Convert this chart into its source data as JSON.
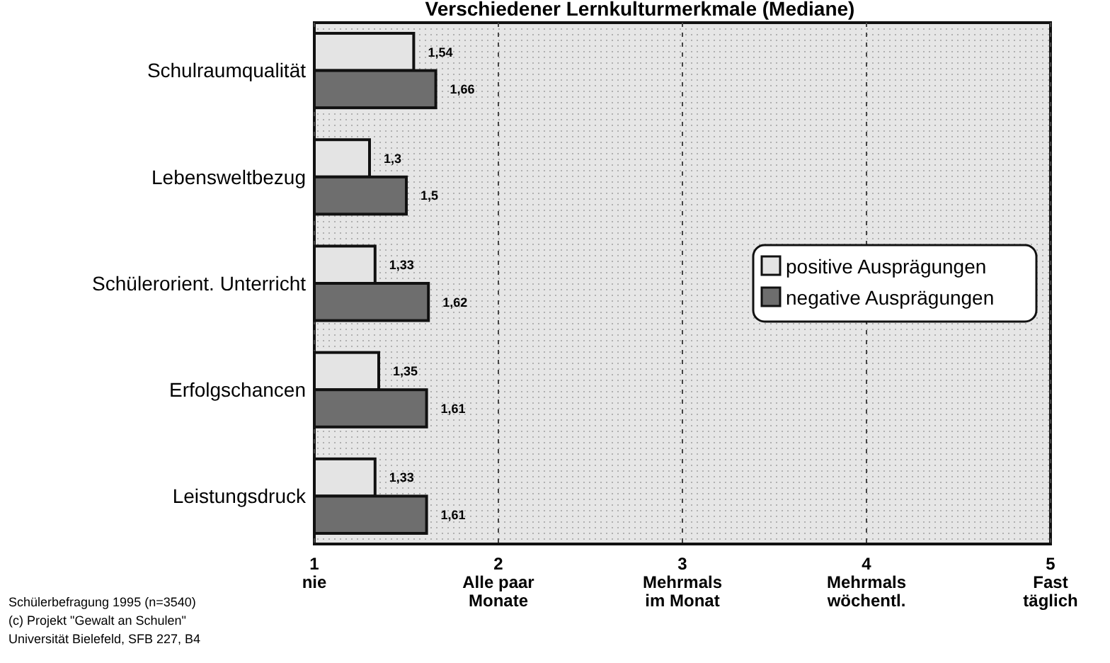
{
  "chart_data": {
    "type": "bar",
    "orientation": "horizontal",
    "title": "Verschiedener Lernkulturmerkmale (Mediane)",
    "categories": [
      "Schulraumqualität",
      "Lebensweltbezug",
      "Schülerorient. Unterricht",
      "Erfolgschancen",
      "Leistungsdruck"
    ],
    "series": [
      {
        "name": "positive Ausprägungen",
        "color": "#e4e4e4",
        "values": [
          1.54,
          1.3,
          1.33,
          1.35,
          1.33
        ],
        "value_labels": [
          "1,54",
          "1,3",
          "1,33",
          "1,35",
          "1,33"
        ]
      },
      {
        "name": "negative Ausprägungen",
        "color": "#6e6e6e",
        "values": [
          1.66,
          1.5,
          1.62,
          1.61,
          1.61
        ],
        "value_labels": [
          "1,66",
          "1,5",
          "1,62",
          "1,61",
          "1,61"
        ]
      }
    ],
    "xlim": [
      1,
      5
    ],
    "xticks": [
      {
        "value": 1,
        "label": "1\nnie"
      },
      {
        "value": 2,
        "label": "2\nAlle paar\nMonate"
      },
      {
        "value": 3,
        "label": "3\nMehrmals\nim Monat"
      },
      {
        "value": 4,
        "label": "4\nMehrmals\nwöchentl."
      },
      {
        "value": 5,
        "label": "5\nFast\ntäglich"
      }
    ],
    "grid": "x",
    "legend": "right",
    "annotations": [
      "Schülerbefragung 1995 (n=3540)",
      "(c) Projekt \"Gewalt an Schulen\"",
      "Universität Bielefeld, SFB 227, B4"
    ]
  }
}
